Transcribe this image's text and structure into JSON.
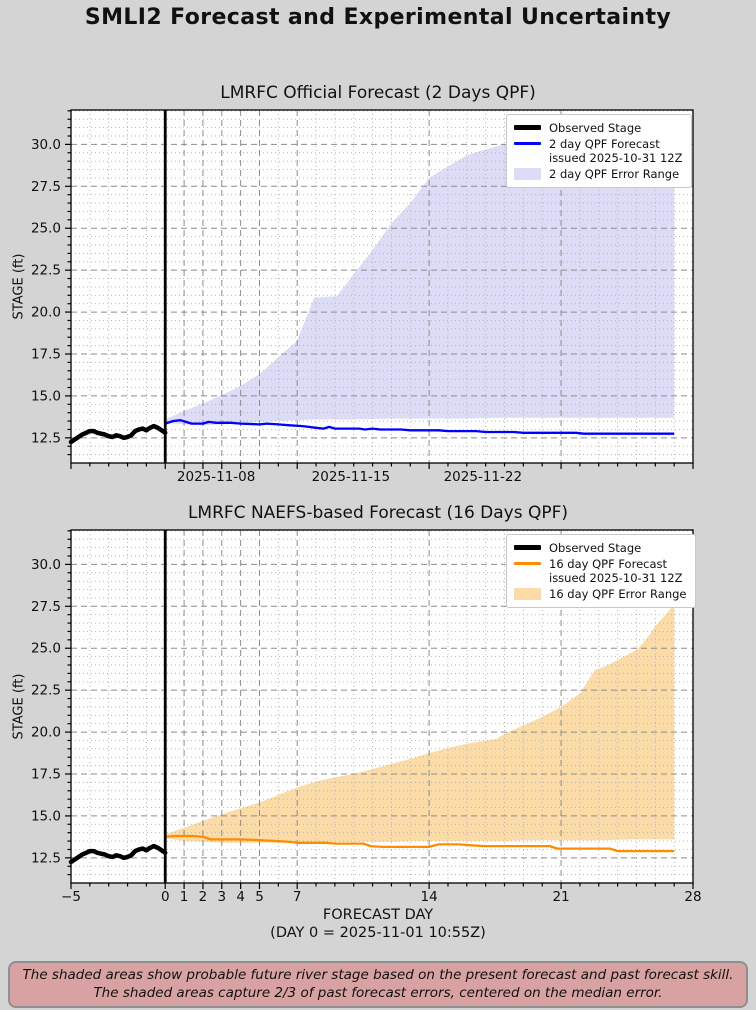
{
  "page_title": "SMLI2 Forecast and Experimental Uncertainty",
  "colors": {
    "background": "#d4d4d4",
    "plot_background": "#ffffff",
    "grid_major": "#8c8c8c",
    "grid_minor": "#b2b2b2",
    "axis": "#000000",
    "observed": "#000000",
    "forecast_2day": "#0000ff",
    "error_range_2day": "#dcdcf6",
    "forecast_16day": "#ff8c00",
    "error_range_16day": "#fbdba6",
    "disclaimer_bg": "#d9a2a2",
    "disclaimer_border": "#8f8f8f"
  },
  "disclaimer": {
    "line1": "The shaded areas show probable future river stage based on the present forecast and past forecast skill.",
    "line2": "The shaded areas capture 2/3 of past forecast errors, centered on the median error."
  },
  "chart_data": [
    {
      "type": "line",
      "title": "LMRFC Official Forecast (2 Days QPF)",
      "ylabel": "STAGE (ft)",
      "ylim": [
        11.0,
        32.05
      ],
      "xlim_days": [
        -5,
        28
      ],
      "grid": "major-dashed, minor-dotted",
      "legend_position": "upper right",
      "now_line_day": 0,
      "yticks": [
        {
          "value": 12.5,
          "text": "12.5"
        },
        {
          "value": 15.0,
          "text": "15.0"
        },
        {
          "value": 17.5,
          "text": "17.5"
        },
        {
          "value": 20.0,
          "text": "20.0"
        },
        {
          "value": 22.5,
          "text": "22.5"
        },
        {
          "value": 25.0,
          "text": "25.0"
        },
        {
          "value": 27.5,
          "text": "27.5"
        },
        {
          "value": 30.0,
          "text": "30.0"
        }
      ],
      "xtick_labels": [
        {
          "day": 2.7,
          "text": "2025-11-08"
        },
        {
          "day": 9.85,
          "text": "2025-11-15"
        },
        {
          "day": 16.85,
          "text": "2025-11-22"
        }
      ],
      "series": {
        "observed": {
          "name": "Observed Stage",
          "color": "#000000",
          "points": [
            [
              -5,
              12.25
            ],
            [
              -4.8,
              12.4
            ],
            [
              -4.6,
              12.55
            ],
            [
              -4.4,
              12.7
            ],
            [
              -4.2,
              12.8
            ],
            [
              -4,
              12.9
            ],
            [
              -3.8,
              12.9
            ],
            [
              -3.6,
              12.8
            ],
            [
              -3.4,
              12.75
            ],
            [
              -3.2,
              12.7
            ],
            [
              -3,
              12.6
            ],
            [
              -2.8,
              12.55
            ],
            [
              -2.6,
              12.65
            ],
            [
              -2.4,
              12.6
            ],
            [
              -2.2,
              12.5
            ],
            [
              -2,
              12.55
            ],
            [
              -1.8,
              12.65
            ],
            [
              -1.6,
              12.9
            ],
            [
              -1.4,
              13.0
            ],
            [
              -1.2,
              13.05
            ],
            [
              -1,
              12.95
            ],
            [
              -0.8,
              13.1
            ],
            [
              -0.6,
              13.2
            ],
            [
              -0.4,
              13.1
            ],
            [
              -0.2,
              12.95
            ],
            [
              0,
              12.8
            ]
          ]
        },
        "forecast": {
          "name": "2 day QPF Forecast issued 2025-10-31 12Z",
          "color": "#0000ff",
          "points": [
            [
              0,
              13.35
            ],
            [
              0.4,
              13.5
            ],
            [
              0.8,
              13.55
            ],
            [
              1.1,
              13.45
            ],
            [
              1.4,
              13.35
            ],
            [
              2,
              13.35
            ],
            [
              2.3,
              13.45
            ],
            [
              2.7,
              13.4
            ],
            [
              3.5,
              13.4
            ],
            [
              4,
              13.35
            ],
            [
              5,
              13.3
            ],
            [
              5.4,
              13.35
            ],
            [
              6,
              13.3
            ],
            [
              6.6,
              13.25
            ],
            [
              7.3,
              13.2
            ],
            [
              8,
              13.1
            ],
            [
              8.4,
              13.05
            ],
            [
              8.7,
              13.15
            ],
            [
              9,
              13.05
            ],
            [
              10.3,
              13.05
            ],
            [
              10.6,
              13.0
            ],
            [
              11,
              13.05
            ],
            [
              11.4,
              13.0
            ],
            [
              12.5,
              13.0
            ],
            [
              13,
              12.95
            ],
            [
              14.5,
              12.95
            ],
            [
              15,
              12.9
            ],
            [
              16.5,
              12.9
            ],
            [
              17,
              12.85
            ],
            [
              18.5,
              12.85
            ],
            [
              19,
              12.8
            ],
            [
              21.8,
              12.8
            ],
            [
              22.2,
              12.75
            ],
            [
              27,
              12.75
            ]
          ]
        },
        "error_range": {
          "name": "2 day QPF Error Range",
          "color": "#dcdcf6",
          "upper": [
            [
              0,
              13.6
            ],
            [
              1,
              14.1
            ],
            [
              2,
              14.55
            ],
            [
              3,
              15.05
            ],
            [
              4,
              15.6
            ],
            [
              5,
              16.3
            ],
            [
              6,
              17.3
            ],
            [
              7,
              18.3
            ],
            [
              7.9,
              20.85
            ],
            [
              9.1,
              20.95
            ],
            [
              10,
              22.25
            ],
            [
              11,
              23.7
            ],
            [
              12,
              25.3
            ],
            [
              13,
              26.5
            ],
            [
              14,
              28.0
            ],
            [
              15,
              28.7
            ],
            [
              16,
              29.35
            ],
            [
              17,
              29.7
            ],
            [
              18,
              30.0
            ],
            [
              19,
              30.1
            ],
            [
              20,
              30.25
            ],
            [
              21,
              30.4
            ],
            [
              22,
              30.5
            ],
            [
              23,
              30.6
            ],
            [
              24,
              30.7
            ],
            [
              25,
              30.85
            ],
            [
              26,
              31.0
            ],
            [
              27,
              31.1
            ]
          ],
          "lower": [
            [
              0,
              13.4
            ],
            [
              1,
              13.3
            ],
            [
              2,
              13.25
            ],
            [
              3,
              13.3
            ],
            [
              4,
              13.35
            ],
            [
              5,
              13.45
            ],
            [
              6,
              13.5
            ],
            [
              7,
              13.55
            ],
            [
              8,
              13.6
            ],
            [
              10,
              13.6
            ],
            [
              12,
              13.65
            ],
            [
              16,
              13.65
            ],
            [
              18,
              13.7
            ],
            [
              27,
              13.7
            ]
          ]
        }
      },
      "legend": [
        {
          "swatch": "thick-line",
          "color": "#000000",
          "lines": [
            "Observed Stage"
          ]
        },
        {
          "swatch": "line",
          "color": "#0000ff",
          "lines": [
            "2 day QPF Forecast",
            "issued 2025-10-31 12Z"
          ]
        },
        {
          "swatch": "patch",
          "color": "#dcdcf6",
          "lines": [
            "2 day QPF Error Range"
          ]
        }
      ]
    },
    {
      "type": "line",
      "title": "LMRFC NAEFS-based Forecast (16 Days QPF)",
      "ylabel": "STAGE (ft)",
      "xlabel": "FORECAST DAY",
      "xlabel2": "(DAY 0 = 2025-11-01 10:55Z)",
      "ylim": [
        11.0,
        32.05
      ],
      "xlim_days": [
        -5,
        28
      ],
      "grid": "major-dashed, minor-dotted",
      "legend_position": "upper right",
      "now_line_day": 0,
      "yticks": [
        {
          "value": 12.5,
          "text": "12.5"
        },
        {
          "value": 15.0,
          "text": "15.0"
        },
        {
          "value": 17.5,
          "text": "17.5"
        },
        {
          "value": 20.0,
          "text": "20.0"
        },
        {
          "value": 22.5,
          "text": "22.5"
        },
        {
          "value": 25.0,
          "text": "25.0"
        },
        {
          "value": 27.5,
          "text": "27.5"
        },
        {
          "value": 30.0,
          "text": "30.0"
        }
      ],
      "xtick_labels": [
        {
          "day": -5,
          "text": "−5"
        },
        {
          "day": 0,
          "text": "0"
        },
        {
          "day": 1,
          "text": "1"
        },
        {
          "day": 2,
          "text": "2"
        },
        {
          "day": 3,
          "text": "3"
        },
        {
          "day": 4,
          "text": "4"
        },
        {
          "day": 5,
          "text": "5"
        },
        {
          "day": 7,
          "text": "7"
        },
        {
          "day": 14,
          "text": "14"
        },
        {
          "day": 21,
          "text": "21"
        },
        {
          "day": 28,
          "text": "28"
        }
      ],
      "series": {
        "observed": {
          "name": "Observed Stage",
          "color": "#000000",
          "points": [
            [
              -5,
              12.25
            ],
            [
              -4.8,
              12.4
            ],
            [
              -4.6,
              12.55
            ],
            [
              -4.4,
              12.7
            ],
            [
              -4.2,
              12.8
            ],
            [
              -4,
              12.9
            ],
            [
              -3.8,
              12.9
            ],
            [
              -3.6,
              12.8
            ],
            [
              -3.4,
              12.75
            ],
            [
              -3.2,
              12.7
            ],
            [
              -3,
              12.6
            ],
            [
              -2.8,
              12.55
            ],
            [
              -2.6,
              12.65
            ],
            [
              -2.4,
              12.6
            ],
            [
              -2.2,
              12.5
            ],
            [
              -2,
              12.55
            ],
            [
              -1.8,
              12.65
            ],
            [
              -1.6,
              12.9
            ],
            [
              -1.4,
              13.0
            ],
            [
              -1.2,
              13.05
            ],
            [
              -1,
              12.95
            ],
            [
              -0.8,
              13.1
            ],
            [
              -0.6,
              13.2
            ],
            [
              -0.4,
              13.1
            ],
            [
              -0.2,
              12.95
            ],
            [
              0,
              12.8
            ]
          ]
        },
        "forecast": {
          "name": "16 day QPF Forecast issued 2025-10-31 12Z",
          "color": "#ff8c00",
          "points": [
            [
              0,
              13.75
            ],
            [
              0.5,
              13.8
            ],
            [
              1.5,
              13.8
            ],
            [
              2,
              13.75
            ],
            [
              2.4,
              13.6
            ],
            [
              4,
              13.6
            ],
            [
              5,
              13.55
            ],
            [
              6,
              13.5
            ],
            [
              6.6,
              13.45
            ],
            [
              7,
              13.4
            ],
            [
              8.5,
              13.4
            ],
            [
              9,
              13.35
            ],
            [
              10.5,
              13.35
            ],
            [
              10.9,
              13.2
            ],
            [
              11.5,
              13.15
            ],
            [
              14,
              13.15
            ],
            [
              14.5,
              13.3
            ],
            [
              15.6,
              13.3
            ],
            [
              16.2,
              13.25
            ],
            [
              17,
              13.2
            ],
            [
              20.4,
              13.2
            ],
            [
              20.8,
              13.05
            ],
            [
              23.6,
              13.05
            ],
            [
              24,
              12.9
            ],
            [
              27,
              12.9
            ]
          ]
        },
        "error_range": {
          "name": "16 day QPF Error Range",
          "color": "#fbdba6",
          "upper": [
            [
              0,
              13.9
            ],
            [
              1,
              14.3
            ],
            [
              2,
              14.7
            ],
            [
              3,
              15.1
            ],
            [
              4,
              15.45
            ],
            [
              5,
              15.8
            ],
            [
              6,
              16.25
            ],
            [
              7,
              16.7
            ],
            [
              8,
              17.05
            ],
            [
              9,
              17.3
            ],
            [
              10,
              17.5
            ],
            [
              11,
              17.8
            ],
            [
              12,
              18.1
            ],
            [
              13,
              18.4
            ],
            [
              14,
              18.75
            ],
            [
              15,
              19.05
            ],
            [
              16,
              19.3
            ],
            [
              17,
              19.5
            ],
            [
              17.6,
              19.6
            ],
            [
              18,
              19.9
            ],
            [
              19,
              20.4
            ],
            [
              20,
              20.9
            ],
            [
              21,
              21.5
            ],
            [
              22,
              22.3
            ],
            [
              22.8,
              23.7
            ],
            [
              23.3,
              23.9
            ],
            [
              24,
              24.3
            ],
            [
              25,
              24.9
            ],
            [
              25.5,
              25.5
            ],
            [
              26,
              26.3
            ],
            [
              27,
              27.6
            ]
          ],
          "lower": [
            [
              0,
              13.7
            ],
            [
              1,
              13.5
            ],
            [
              2,
              13.45
            ],
            [
              3,
              13.4
            ],
            [
              7,
              13.4
            ],
            [
              9,
              13.45
            ],
            [
              12,
              13.45
            ],
            [
              13,
              13.5
            ],
            [
              18,
              13.5
            ],
            [
              19,
              13.55
            ],
            [
              23,
              13.55
            ],
            [
              25,
              13.6
            ],
            [
              27,
              13.6
            ]
          ]
        }
      },
      "legend": [
        {
          "swatch": "thick-line",
          "color": "#000000",
          "lines": [
            "Observed Stage"
          ]
        },
        {
          "swatch": "line",
          "color": "#ff8c00",
          "lines": [
            "16 day QPF Forecast",
            "issued 2025-10-31 12Z"
          ]
        },
        {
          "swatch": "patch",
          "color": "#fbdba6",
          "lines": [
            "16 day QPF Error Range"
          ]
        }
      ]
    }
  ]
}
